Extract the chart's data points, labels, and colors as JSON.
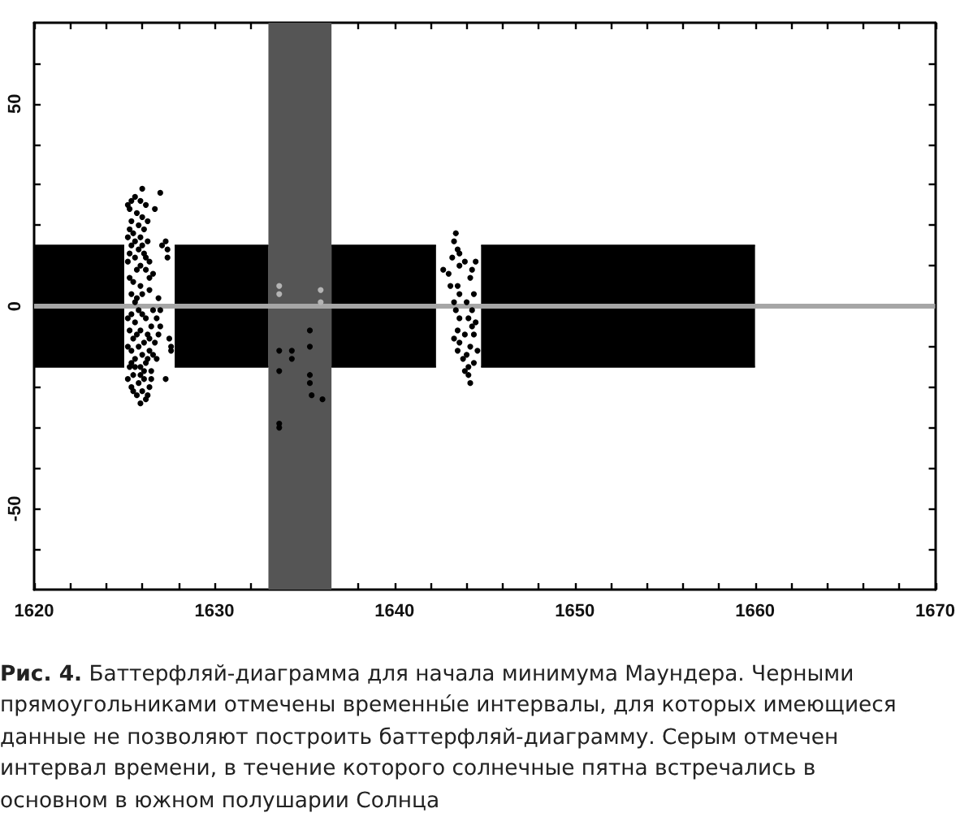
{
  "chart_data": {
    "type": "scatter",
    "xlim": [
      1620,
      1670
    ],
    "xticks": [
      1620,
      {
        "value": 1622,
        "label": null
      },
      {
        "value": 1624,
        "label": null
      },
      {
        "value": 1626,
        "label": null
      },
      {
        "value": 1628,
        "label": null
      },
      1630,
      {
        "value": 1632,
        "label": null
      },
      {
        "value": 1634,
        "label": null
      },
      {
        "value": 1636,
        "label": null
      },
      {
        "value": 1638,
        "label": null
      },
      1640,
      {
        "value": 1642,
        "label": null
      },
      {
        "value": 1644,
        "label": null
      },
      {
        "value": 1646,
        "label": null
      },
      {
        "value": 1648,
        "label": null
      },
      1650,
      {
        "value": 1652,
        "label": null
      },
      {
        "value": 1654,
        "label": null
      },
      {
        "value": 1656,
        "label": null
      },
      {
        "value": 1658,
        "label": null
      },
      1660,
      {
        "value": 1662,
        "label": null
      },
      {
        "value": 1664,
        "label": null
      },
      {
        "value": 1666,
        "label": null
      },
      {
        "value": 1668,
        "label": null
      },
      1670
    ],
    "ylim": [
      -70,
      70
    ],
    "yticks": [
      {
        "value": -60,
        "label": null
      },
      -50,
      {
        "value": -40,
        "label": null
      },
      {
        "value": -30,
        "label": null
      },
      {
        "value": -20,
        "label": null
      },
      {
        "value": -10,
        "label": null
      },
      0,
      {
        "value": 10,
        "label": null
      },
      {
        "value": 20,
        "label": null
      },
      {
        "value": 30,
        "label": null
      },
      {
        "value": 40,
        "label": null
      },
      50,
      {
        "value": 60,
        "label": null
      }
    ],
    "marker": "circle",
    "bands": [
      {
        "axis": "x",
        "from": 1633,
        "to": 1636.5,
        "color": "#555555"
      }
    ],
    "ref_lines": [
      {
        "axis": "y",
        "value": 0,
        "color": "#a6a6a6"
      }
    ],
    "series": [
      {
        "type": "area",
        "marker": "none",
        "color": "#000000",
        "x": [
          1620,
          1625
        ],
        "values": [
          15,
          15
        ]
      },
      {
        "type": "area",
        "marker": "none",
        "color": "#000000",
        "x": [
          1620,
          1625
        ],
        "values": [
          -15,
          -15
        ]
      },
      {
        "type": "area",
        "marker": "none",
        "color": "#000000",
        "x": [
          1627.8,
          1633
        ],
        "values": [
          15,
          15
        ]
      },
      {
        "type": "area",
        "marker": "none",
        "color": "#000000",
        "x": [
          1627.8,
          1633
        ],
        "values": [
          -15,
          -15
        ]
      },
      {
        "type": "area",
        "marker": "none",
        "color": "#000000",
        "x": [
          1636.5,
          1642.3
        ],
        "values": [
          15,
          15
        ]
      },
      {
        "type": "area",
        "marker": "none",
        "color": "#000000",
        "x": [
          1636.5,
          1642.3
        ],
        "values": [
          -15,
          -15
        ]
      },
      {
        "type": "area",
        "marker": "none",
        "color": "#000000",
        "x": [
          1644.8,
          1660
        ],
        "values": [
          15,
          15
        ]
      },
      {
        "type": "area",
        "marker": "none",
        "color": "#000000",
        "x": [
          1644.8,
          1660
        ],
        "values": [
          -15,
          -15
        ]
      },
      {
        "color": "#000000",
        "x": [
          1626.0,
          1627.0,
          1625.4,
          1626.7,
          1625.3,
          1625.7,
          1626.0,
          1625.4,
          1625.8,
          1626.1,
          1625.5,
          1625.9,
          1626.3,
          1627.1,
          1625.4,
          1625.8,
          1627.4,
          1627.4,
          1626.1,
          1625.6,
          1626.4,
          1625.9,
          1626.2,
          1625.3,
          1626.6,
          1625.9,
          1626.4,
          1625.7,
          1626.9,
          1625.4,
          1625.2,
          1625.6,
          1626.2,
          1625.3,
          1625.6,
          1626.0,
          1625.3,
          1625.7,
          1626.4,
          1625.2,
          1626.0,
          1625.5,
          1626.3,
          1625.9,
          1625.2,
          1626.2,
          1627.3,
          1625.6,
          1625.4,
          1625.8,
          1626.2,
          1626.8,
          1625.6,
          1626.5,
          1627.0,
          1625.3,
          1625.9,
          1626.3,
          1627.5,
          1625.5,
          1626.1,
          1626.7,
          1625.8,
          1627.6,
          1625.4,
          1626.4,
          1626.0,
          1625.6,
          1626.2,
          1626.8,
          1625.3,
          1625.9,
          1626.5,
          1625.5,
          1626.1,
          1627.3,
          1625.8,
          1626.4,
          1625.4,
          1626.0,
          1625.7,
          1626.2,
          1625.2,
          1626.0,
          1626.6,
          1625.7,
          1626.4,
          1625.2,
          1626.1,
          1625.6,
          1626.3,
          1625.2,
          1625.9,
          1626.3,
          1625.5,
          1625.9,
          1626.5,
          1626.9,
          1627.0,
          1625.4,
          1626.6,
          1627.6,
          1633.6,
          1633.6,
          1634.3,
          1634.3,
          1635.3,
          1635.3,
          1635.3,
          1635.3,
          1635.4,
          1636.0,
          1633.6,
          1633.6,
          1643.4,
          1643.3,
          1643.5,
          1643.6,
          1642.7,
          1643.0,
          1643.9,
          1644.5,
          1644.3,
          1644.2,
          1643.5,
          1643.6,
          1644.4,
          1643.3,
          1643.6,
          1644.1,
          1644.5,
          1643.5,
          1643.9,
          1644.4,
          1643.6,
          1644.2,
          1644.6,
          1643.8,
          1644.1,
          1644.1,
          1644.2,
          1643.2,
          1643.6,
          1643.1,
          1644.0,
          1643.4,
          1644.3,
          1643.3,
          1644.0,
          1643.5,
          1644.4,
          1643.9,
          1644.3
        ],
        "values": [
          29,
          28,
          26,
          24,
          24,
          23,
          22,
          21,
          20,
          19,
          18,
          17,
          16,
          15,
          15,
          14,
          14,
          12,
          13,
          12,
          11,
          10,
          9,
          7,
          8,
          5,
          4,
          2,
          2,
          3,
          25,
          27,
          25,
          19,
          16,
          15,
          13,
          9,
          7,
          11,
          3,
          6,
          21,
          26,
          17,
          12,
          16,
          1,
          -2,
          -1,
          -3,
          -3,
          -4,
          -5,
          -5,
          -6,
          -6,
          -7,
          -8,
          -8,
          -9,
          -9,
          -10,
          -11,
          -11,
          -11,
          -12,
          -13,
          -14,
          -13,
          -15,
          -15,
          -16,
          -17,
          -18,
          -18,
          -19,
          -20,
          -20,
          -21,
          -22,
          -23,
          -3,
          -2,
          -1,
          -7,
          -8,
          -10,
          -16,
          -15,
          -13,
          -18,
          -17,
          -22,
          -21,
          -24,
          -18,
          -7,
          -1,
          -14,
          -12,
          -10,
          -11,
          -16,
          -11,
          -13,
          -6,
          -10,
          -17,
          -19,
          -22,
          -23,
          -29,
          -30,
          18,
          16,
          14,
          13,
          9,
          8,
          11,
          11,
          9,
          7,
          5,
          3,
          3,
          1,
          -3,
          -3,
          -4,
          -6,
          -7,
          -7,
          -9,
          -10,
          -11,
          -13,
          -15,
          -17,
          -19,
          12,
          10,
          5,
          1,
          -1,
          -1,
          -8,
          -12,
          -11,
          -14,
          -16,
          -5
        ]
      },
      {
        "color": "#b4b4b4",
        "x": [
          1633.6,
          1633.6,
          1635.9,
          1635.9
        ],
        "values": [
          5,
          3,
          4,
          1
        ]
      }
    ],
    "annotations": [
      "Рис. 4. Баттерфляй-диаграмма для начала минимума Маундера. Черными прямоугольниками отмечены временны́е интервалы, для которых имеющиеся данные не позволяют построить баттерфляй-диаграмму. Серым отмечен интервал времени, в течение которого солнечные пятна встречались в основном в южном полушарии Солнца"
    ]
  }
}
